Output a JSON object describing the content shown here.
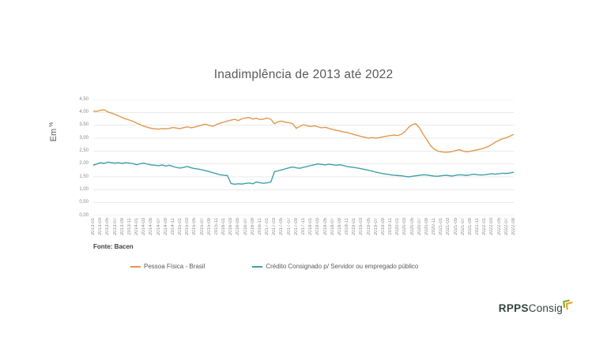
{
  "slide": {
    "title": "Inadimplência de 2013 até 2022",
    "source_note": "Fonte: Bacen",
    "y_axis_unit": {
      "text": "Em",
      "suffix": "%"
    },
    "logo": {
      "brand_bold": "RPPS",
      "brand_regular": "Consig",
      "icon": "double-chevron-signal-icon"
    },
    "colors": {
      "title_text": "#595959",
      "axis_text": "#8c8c8c",
      "grid": "#e9e9e9",
      "series_pessoa_fisica": "#e3974e",
      "series_consignado": "#41a0a8",
      "logo_text": "#35423b",
      "logo_chevron_yellow": "#f1a425",
      "logo_chevron_green": "#7cae3e"
    }
  },
  "chart_data": {
    "type": "line",
    "title": "Inadimplência de 2013 até 2022",
    "xlabel": "",
    "ylabel": "Em %",
    "ylim": [
      0,
      4.5
    ],
    "grid": "horizontal",
    "legend_position": "bottom",
    "x_start": "2013-01",
    "x_end": "2022-09",
    "x_interval": "monthly",
    "y_tick_labels": [
      "4,50",
      "4,00",
      "3,50",
      "3,00",
      "2,50",
      "2,00",
      "1,50",
      "1,00",
      "0,50",
      "0,00"
    ],
    "x_tick_labels": [
      "2013-01",
      "2013-03",
      "2013-05",
      "2013-07",
      "2013-09",
      "2013-11",
      "2014-01",
      "2014-03",
      "2014-05",
      "2014-07",
      "2014-09",
      "2014-11",
      "2015-01",
      "2015-03",
      "2015-05",
      "2015-07",
      "2015-09",
      "2015-11",
      "2016-01",
      "2016-03",
      "2016-05",
      "2016-07",
      "2016-09",
      "2016-11",
      "2017-01",
      "2017-03",
      "2017-05",
      "2017-07",
      "2017-09",
      "2017-11",
      "2018-01",
      "2018-03",
      "2018-05",
      "2018-07",
      "2018-09",
      "2018-11",
      "2019-01",
      "2019-03",
      "2019-05",
      "2019-07",
      "2019-09",
      "2019-11",
      "2020-01",
      "2020-03",
      "2020-05",
      "2020-07",
      "2020-09",
      "2020-11",
      "2021-01",
      "2021-03",
      "2021-05",
      "2021-07",
      "2021-09",
      "2021-11",
      "2022-01",
      "2022-03",
      "2022-05",
      "2022-07",
      "2022-09"
    ],
    "series": [
      {
        "name": "Pessoa Física - Brasil",
        "color": "#e3974e",
        "values": [
          4.05,
          4.04,
          4.08,
          4.1,
          4.02,
          3.97,
          3.92,
          3.86,
          3.8,
          3.74,
          3.7,
          3.65,
          3.58,
          3.52,
          3.46,
          3.42,
          3.38,
          3.36,
          3.35,
          3.37,
          3.36,
          3.38,
          3.41,
          3.39,
          3.37,
          3.41,
          3.44,
          3.4,
          3.43,
          3.47,
          3.51,
          3.54,
          3.49,
          3.46,
          3.53,
          3.58,
          3.62,
          3.66,
          3.7,
          3.73,
          3.68,
          3.75,
          3.78,
          3.8,
          3.74,
          3.77,
          3.72,
          3.74,
          3.78,
          3.73,
          3.56,
          3.64,
          3.66,
          3.62,
          3.6,
          3.56,
          3.38,
          3.46,
          3.52,
          3.48,
          3.45,
          3.48,
          3.44,
          3.4,
          3.42,
          3.38,
          3.34,
          3.3,
          3.28,
          3.24,
          3.22,
          3.18,
          3.14,
          3.1,
          3.06,
          3.03,
          3.0,
          3.02,
          3.0,
          3.02,
          3.05,
          3.08,
          3.1,
          3.12,
          3.1,
          3.15,
          3.25,
          3.42,
          3.52,
          3.56,
          3.4,
          3.15,
          2.95,
          2.72,
          2.58,
          2.5,
          2.47,
          2.45,
          2.46,
          2.48,
          2.52,
          2.55,
          2.5,
          2.47,
          2.49,
          2.52,
          2.55,
          2.58,
          2.62,
          2.68,
          2.76,
          2.85,
          2.92,
          2.98,
          3.02,
          3.08,
          3.15
        ]
      },
      {
        "name": "Crédito Consignado p/ Servidor ou empregado público",
        "color": "#41a0a8",
        "values": [
          1.95,
          2.0,
          2.05,
          2.02,
          2.07,
          2.05,
          2.03,
          2.05,
          2.02,
          2.05,
          2.03,
          2.01,
          1.97,
          2.01,
          2.03,
          1.99,
          1.96,
          1.95,
          1.93,
          1.96,
          1.92,
          1.95,
          1.9,
          1.86,
          1.84,
          1.87,
          1.9,
          1.85,
          1.82,
          1.8,
          1.77,
          1.74,
          1.7,
          1.66,
          1.62,
          1.58,
          1.56,
          1.55,
          1.24,
          1.21,
          1.23,
          1.22,
          1.24,
          1.26,
          1.23,
          1.3,
          1.27,
          1.25,
          1.27,
          1.3,
          1.7,
          1.73,
          1.77,
          1.81,
          1.85,
          1.88,
          1.85,
          1.83,
          1.87,
          1.9,
          1.94,
          1.97,
          2.0,
          1.98,
          1.96,
          1.99,
          1.97,
          1.95,
          1.97,
          1.94,
          1.9,
          1.88,
          1.86,
          1.84,
          1.81,
          1.78,
          1.75,
          1.72,
          1.68,
          1.65,
          1.62,
          1.6,
          1.58,
          1.56,
          1.55,
          1.54,
          1.52,
          1.5,
          1.52,
          1.54,
          1.56,
          1.58,
          1.57,
          1.55,
          1.53,
          1.52,
          1.54,
          1.56,
          1.55,
          1.53,
          1.56,
          1.58,
          1.57,
          1.55,
          1.58,
          1.6,
          1.58,
          1.57,
          1.58,
          1.6,
          1.62,
          1.6,
          1.62,
          1.64,
          1.63,
          1.65,
          1.68
        ]
      }
    ]
  }
}
